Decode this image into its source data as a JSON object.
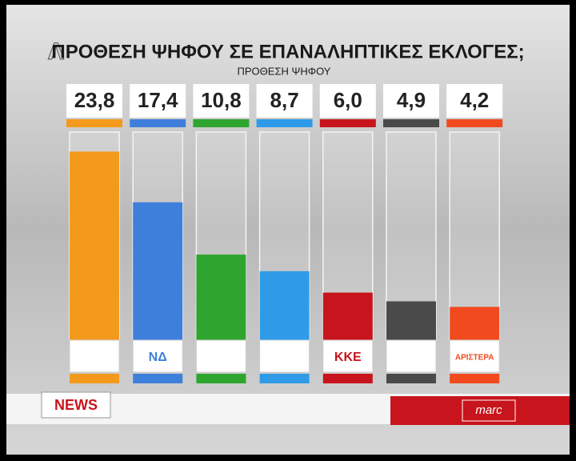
{
  "chart_data": {
    "type": "bar",
    "title": "ΠΡΟΘΕΣΗ ΨΗΦΟΥ ΣΕ ΕΠΑΝΑΛΗΠΤΙΚΕΣ ΕΚΛΟΓΕΣ;",
    "subtitle": "ΠΡΟΘΕΣΗ ΨΗΦΟΥ",
    "categories": [
      null,
      "ΝΔ",
      null,
      null,
      "ΚΚΕ",
      null,
      "ΑΡΙΣΤΕΡΑ"
    ],
    "values": [
      23.8,
      17.4,
      10.8,
      8.7,
      6.0,
      4.9,
      4.2
    ],
    "value_labels": [
      "23,8",
      "17,4",
      "10,8",
      "8,7",
      "6,0",
      "4,9",
      "4,2"
    ],
    "colors": [
      "#f39a1c",
      "#3f7fdc",
      "#2ea52e",
      "#2f9be8",
      "#c8141c",
      "#4a4a4a",
      "#f04a1e"
    ]
  },
  "overlay": {
    "news": "NEWS",
    "channel_logo": "marc"
  }
}
